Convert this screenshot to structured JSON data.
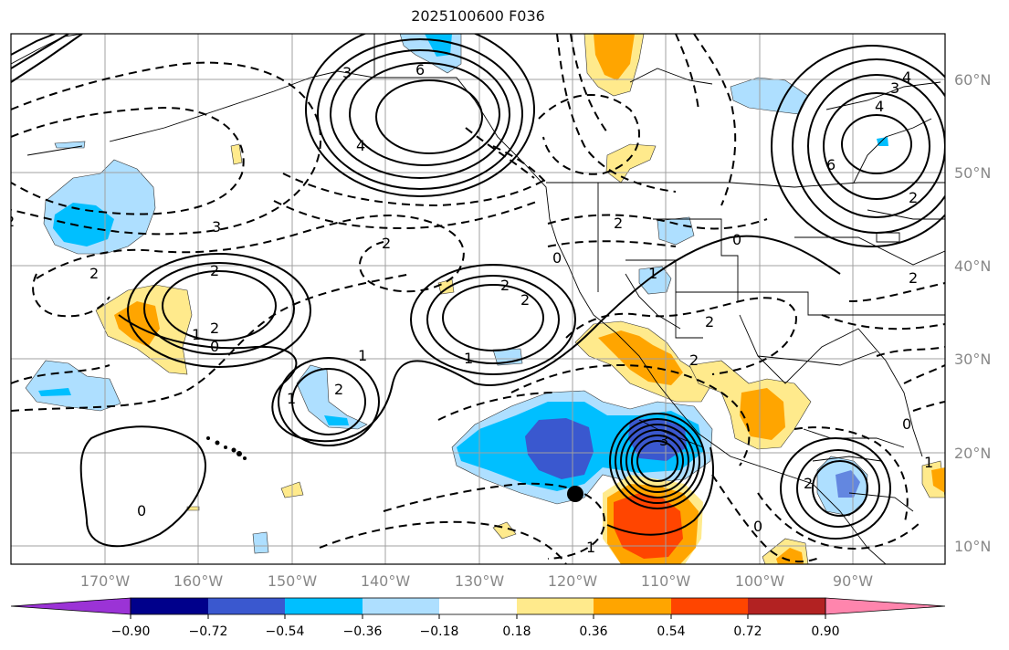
{
  "title": "2025100600 F036",
  "latitude_labels": [
    "60°N",
    "50°N",
    "40°N",
    "30°N",
    "20°N",
    "10°N"
  ],
  "longitude_labels": [
    "170°W",
    "160°W",
    "150°W",
    "140°W",
    "130°W",
    "120°W",
    "110°W",
    "100°W",
    "90°W"
  ],
  "colorbar": {
    "tick_labels": [
      "−0.90",
      "−0.72",
      "−0.54",
      "−0.36",
      "−0.18",
      "0.18",
      "0.36",
      "0.54",
      "0.72",
      "0.90"
    ],
    "colors": [
      "#9b33d6",
      "#00008b",
      "#3a58cf",
      "#00bfff",
      "#aedfff",
      "#ffffff",
      "#ffea8c",
      "#ffa500",
      "#ff4500",
      "#b22222",
      "#ff85ad"
    ]
  },
  "contour_labels": {
    "alaska_high_6": "6",
    "alaska_high_4": "4",
    "alaska_high_3": "3",
    "atlantic_high_6": "6",
    "atlantic_high_4": "4",
    "atlantic_high_3": "3",
    "west_pac_high_2": "2",
    "west_pac_high_1": "1",
    "west_pac_zero": "0",
    "west_pac_low_3": "3",
    "west_pac_low_2": "2",
    "central_low_2": "2",
    "east_pac_high_2": "2",
    "east_pac_high_1": "1",
    "hawaii_high_2": "2",
    "hawaii_high_1": "1",
    "cyclone_3": "3",
    "cyclone_0": "0",
    "plains_zero": "0",
    "plains_low_2": "2",
    "nevada_high_1": "1",
    "mexico_low_2": "2",
    "gulf_high_1": "1",
    "gulf_high_2": "2",
    "southwest_zero": "0",
    "south_zero": "0",
    "south_low_1": "1",
    "east_coast_2": "2",
    "west_low_2": "2"
  }
}
